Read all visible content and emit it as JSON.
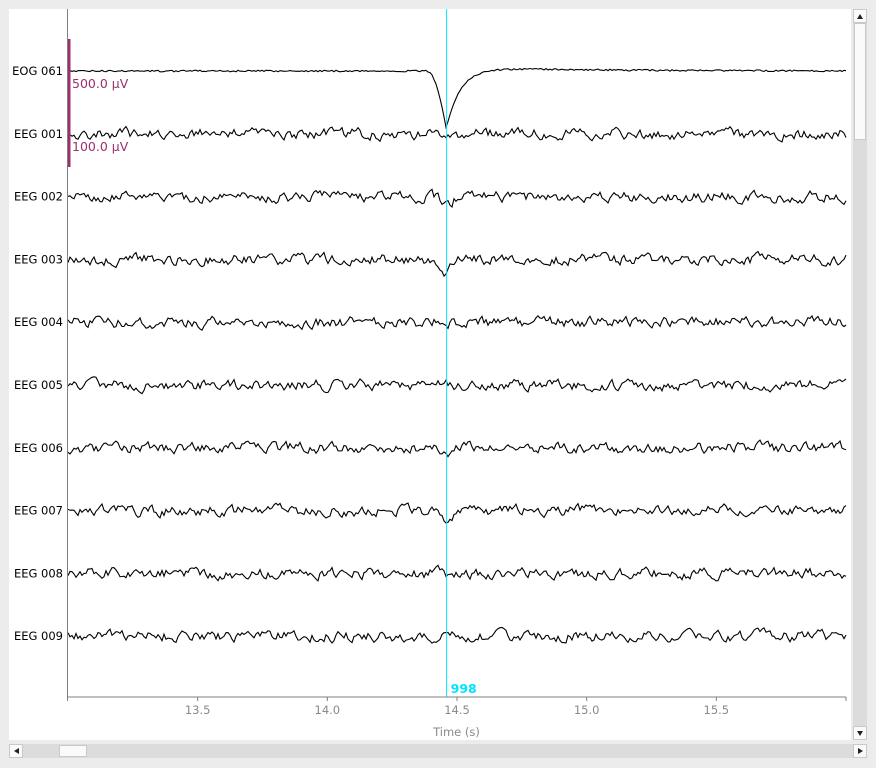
{
  "chart_data": {
    "type": "line",
    "xlabel": "Time (s)",
    "xlim": [
      13.0,
      16.0
    ],
    "xticks": [
      13.5,
      14.0,
      14.5,
      15.0,
      15.5
    ],
    "xtick_labels": [
      "13.5",
      "14.0",
      "14.5",
      "15.0",
      "15.5"
    ],
    "grid": false,
    "series": [
      {
        "name": "EOG 061",
        "type": "eog"
      },
      {
        "name": "EEG 001",
        "type": "eeg"
      },
      {
        "name": "EEG 002",
        "type": "eeg"
      },
      {
        "name": "EEG 003",
        "type": "eeg"
      },
      {
        "name": "EEG 004",
        "type": "eeg"
      },
      {
        "name": "EEG 005",
        "type": "eeg"
      },
      {
        "name": "EEG 006",
        "type": "eeg"
      },
      {
        "name": "EEG 007",
        "type": "eeg"
      },
      {
        "name": "EEG 008",
        "type": "eeg"
      },
      {
        "name": "EEG 009",
        "type": "eeg"
      }
    ],
    "scale_bars": [
      {
        "label": "500.0 µV",
        "channel": "EOG 061"
      },
      {
        "label": "100.0 µV",
        "channel": "EEG 001"
      }
    ],
    "event": {
      "time": 14.46,
      "label": "998"
    }
  },
  "colors": {
    "trace": "#000000",
    "event_line": "#00e5ff",
    "scale_bar": "#9c2f6e",
    "axis": "#808080"
  }
}
